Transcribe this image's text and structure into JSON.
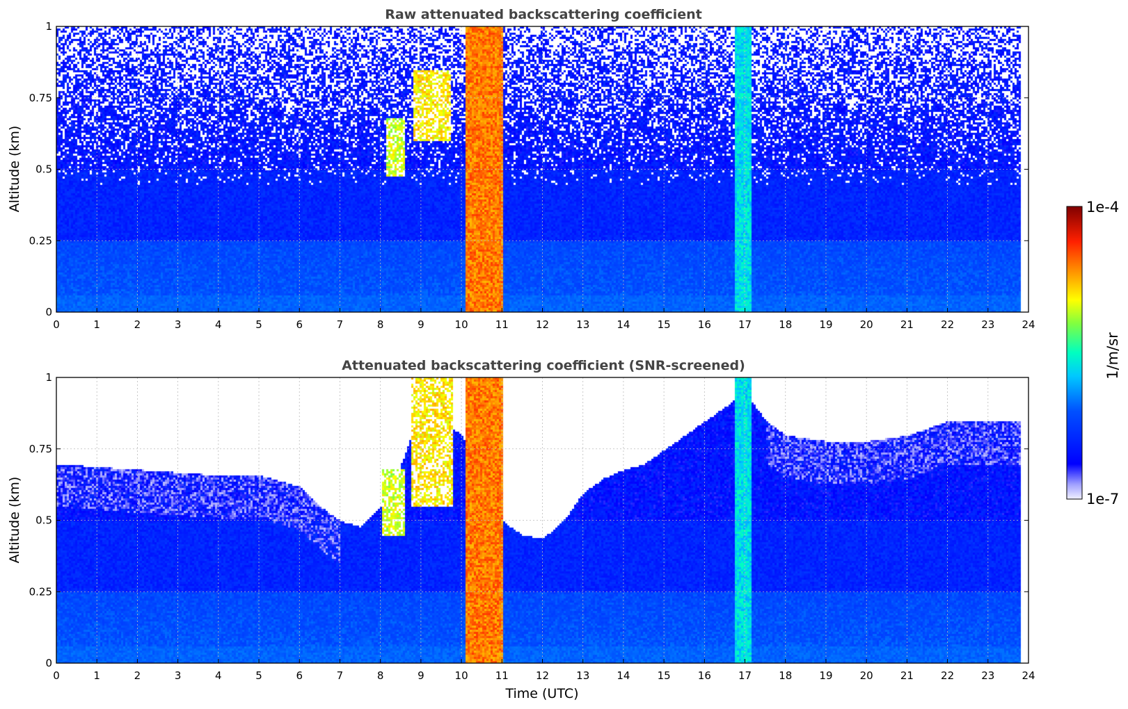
{
  "chart_data": [
    {
      "type": "heatmap",
      "title": "Raw attenuated backscattering coefficient",
      "xlabel": "",
      "ylabel": "Altitude (km)",
      "xlim": [
        0,
        24
      ],
      "ylim": [
        0,
        1
      ],
      "xticks": [
        "0",
        "1",
        "2",
        "3",
        "4",
        "5",
        "6",
        "7",
        "8",
        "9",
        "10",
        "11",
        "12",
        "13",
        "14",
        "15",
        "16",
        "17",
        "18",
        "19",
        "20",
        "21",
        "22",
        "23",
        "24"
      ],
      "yticks": [
        "0",
        "0.25",
        "0.5",
        "0.75",
        "1"
      ],
      "grid": true,
      "screened": false,
      "data_end_hour": 23.8,
      "colormap": "jet",
      "log_scale": true,
      "features": [
        {
          "x0": 10.1,
          "x1": 11.0,
          "y0": 0,
          "y1": 1,
          "level": 0.8
        },
        {
          "x0": 16.75,
          "x1": 17.15,
          "y0": 0,
          "y1": 1,
          "level": 0.45
        },
        {
          "x0": 8.1,
          "x1": 8.6,
          "y0": 0.48,
          "y1": 0.68,
          "level": 0.65
        },
        {
          "x0": 8.8,
          "x1": 9.7,
          "y0": 0.6,
          "y1": 0.85,
          "level": 0.7
        }
      ]
    },
    {
      "type": "heatmap",
      "title": "Attenuated backscattering coefficient (SNR-screened)",
      "xlabel": "Time (UTC)",
      "ylabel": "Altitude (km)",
      "xlim": [
        0,
        24
      ],
      "ylim": [
        0,
        1
      ],
      "xticks": [
        "0",
        "1",
        "2",
        "3",
        "4",
        "5",
        "6",
        "7",
        "8",
        "9",
        "10",
        "11",
        "12",
        "13",
        "14",
        "15",
        "16",
        "17",
        "18",
        "19",
        "20",
        "21",
        "22",
        "23",
        "24"
      ],
      "yticks": [
        "0",
        "0.25",
        "0.5",
        "0.75",
        "1"
      ],
      "grid": true,
      "screened": true,
      "data_end_hour": 23.8,
      "colormap": "jet",
      "log_scale": true,
      "boundary_top": [
        [
          0,
          0.7
        ],
        [
          1,
          0.69
        ],
        [
          2,
          0.68
        ],
        [
          3,
          0.67
        ],
        [
          4,
          0.66
        ],
        [
          5,
          0.66
        ],
        [
          6,
          0.62
        ],
        [
          6.5,
          0.55
        ],
        [
          7,
          0.5
        ],
        [
          7.5,
          0.48
        ],
        [
          8,
          0.55
        ],
        [
          8.5,
          0.7
        ],
        [
          9,
          0.9
        ],
        [
          9.5,
          0.85
        ],
        [
          10,
          0.8
        ],
        [
          11,
          0.5
        ],
        [
          11.5,
          0.45
        ],
        [
          12,
          0.44
        ],
        [
          12.5,
          0.5
        ],
        [
          13,
          0.6
        ],
        [
          13.5,
          0.65
        ],
        [
          14,
          0.68
        ],
        [
          14.5,
          0.7
        ],
        [
          15,
          0.75
        ],
        [
          15.5,
          0.8
        ],
        [
          16,
          0.85
        ],
        [
          16.5,
          0.9
        ],
        [
          17,
          0.95
        ],
        [
          17.5,
          0.85
        ],
        [
          18,
          0.8
        ],
        [
          19,
          0.78
        ],
        [
          20,
          0.78
        ],
        [
          21,
          0.8
        ],
        [
          22,
          0.85
        ],
        [
          23,
          0.85
        ],
        [
          23.8,
          0.85
        ]
      ],
      "features": [
        {
          "x0": 10.1,
          "x1": 11.0,
          "y0": 0,
          "y1": 1,
          "level": 0.8
        },
        {
          "x0": 16.75,
          "x1": 17.15,
          "y0": 0,
          "y1": 1,
          "level": 0.45
        },
        {
          "x0": 8.0,
          "x1": 8.6,
          "y0": 0.45,
          "y1": 0.68,
          "level": 0.65
        },
        {
          "x0": 8.75,
          "x1": 9.75,
          "y0": 0.55,
          "y1": 1.0,
          "level": 0.7
        }
      ]
    }
  ],
  "colorbar": {
    "label": "1/m/sr",
    "min_label": "1e-7",
    "max_label": "1e-4",
    "colormap": "jet"
  }
}
